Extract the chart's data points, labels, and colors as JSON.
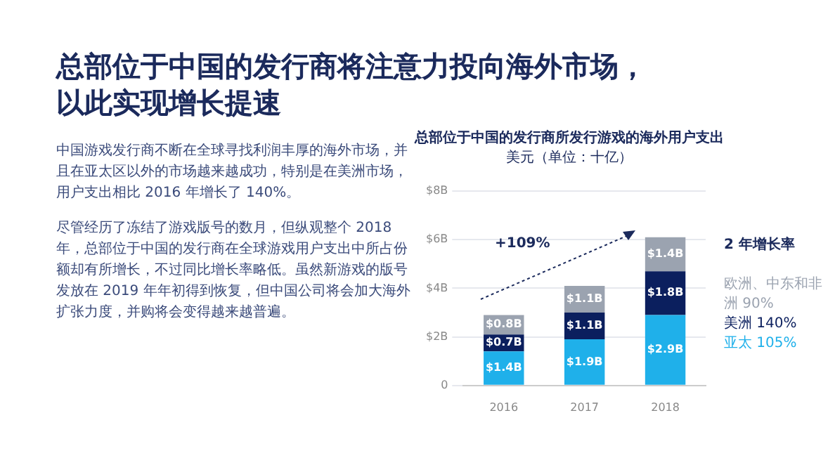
{
  "chart_data": {
    "type": "bar",
    "title": "总部位于中国的发行商所发行游戏的海外用户支出",
    "subtitle": "美元（单位：十亿）",
    "categories": [
      "2016",
      "2017",
      "2018"
    ],
    "series": [
      {
        "name": "亚太 105%",
        "color": "#1fb0ea",
        "values": [
          1.4,
          1.9,
          2.9
        ],
        "value_labels": [
          "$1.4B",
          "$1.9B",
          "$2.9B"
        ]
      },
      {
        "name": "美洲 140%",
        "color": "#0b1f5e",
        "values": [
          0.7,
          1.1,
          1.8
        ],
        "value_labels": [
          "$0.7B",
          "$1.1B",
          "$1.8B"
        ]
      },
      {
        "name": "欧洲、中东和非洲 90%",
        "color": "#9ba3b0",
        "values": [
          0.8,
          1.1,
          1.4
        ],
        "value_labels": [
          "$0.8B",
          "$1.1B",
          "$1.4B"
        ]
      }
    ],
    "stacked": true,
    "ylim": [
      0,
      8
    ],
    "yticks": [
      0,
      {
        "value": 2,
        "label": "$2B"
      },
      {
        "value": 4,
        "label": "$4B"
      },
      {
        "value": 6,
        "label": "$6B"
      },
      {
        "value": 8,
        "label": "$8B"
      }
    ],
    "grid": "y",
    "legend": "right",
    "legend_title": "2 年增长率",
    "annotations": [
      "总部位于中国的发行商将注意力投向海外市场，以此实现增长提速",
      "中国游戏发行商不断在全球寻找利润丰厚的海外市场，并且在亚太区以外的市场越来越成功，特别是在美洲市场，用户支出相比 2016 年增长了 140%。",
      "尽管经历了冻结了游戏版号的数月，但纵观整个 2018 年，总部位于中国的发行商在全球游戏用户支出中所占份额却有所增长，不过同比增长率略低。虽然新游戏的版号发放在 2019 年年初得到恢复，但中国公司将会加大海外扩张力度，并购将会变得越来越普遍。",
      "+109%"
    ]
  }
}
